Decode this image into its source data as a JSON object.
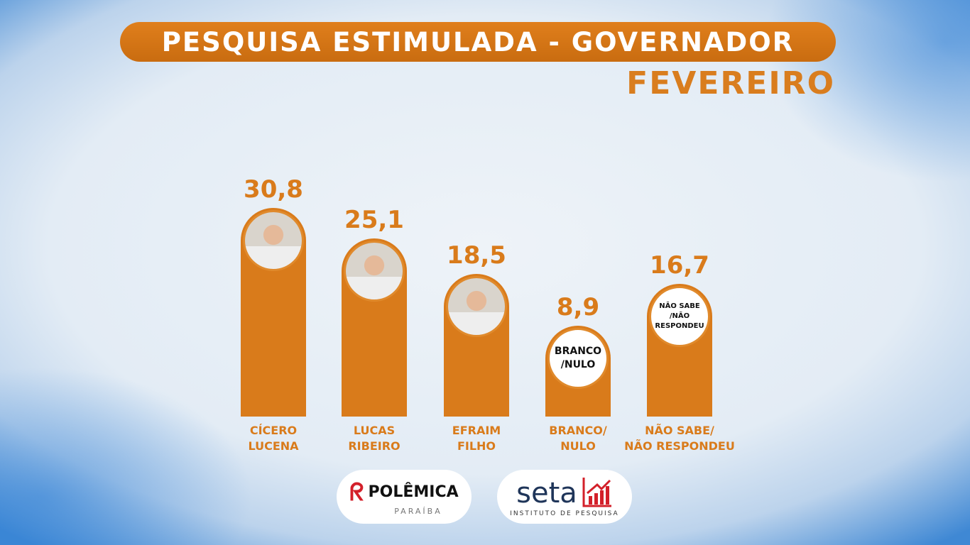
{
  "header": {
    "title": "PESQUISA ESTIMULADA - GOVERNADOR",
    "subtitle": "FEVEREIRO"
  },
  "chart_data": {
    "type": "bar",
    "categories": [
      "CÍCERO\nLUCENA",
      "LUCAS\nRIBEIRO",
      "EFRAIM\nFILHO",
      "BRANCO/\nNULO",
      "NÃO SABE/\nNÃO RESPONDEU"
    ],
    "values": [
      30.8,
      25.1,
      18.5,
      8.9,
      16.7
    ],
    "data_labels": [
      "30,8",
      "25,1",
      "18,5",
      "8,9",
      "16,7"
    ],
    "circle_labels": [
      "",
      "",
      "",
      "BRANCO\n/NULO",
      "NÃO SABE\n/NÃO\nRESPONDEU"
    ],
    "circle_types": [
      "photo",
      "photo",
      "photo",
      "text",
      "text"
    ],
    "bar_color": "#d97b1b"
  },
  "logos": {
    "polemica": "POLÊMICA",
    "polemica_sub": "PARAÍBA",
    "seta": "seta",
    "seta_sub": "INSTITUTO DE PESQUISA"
  }
}
